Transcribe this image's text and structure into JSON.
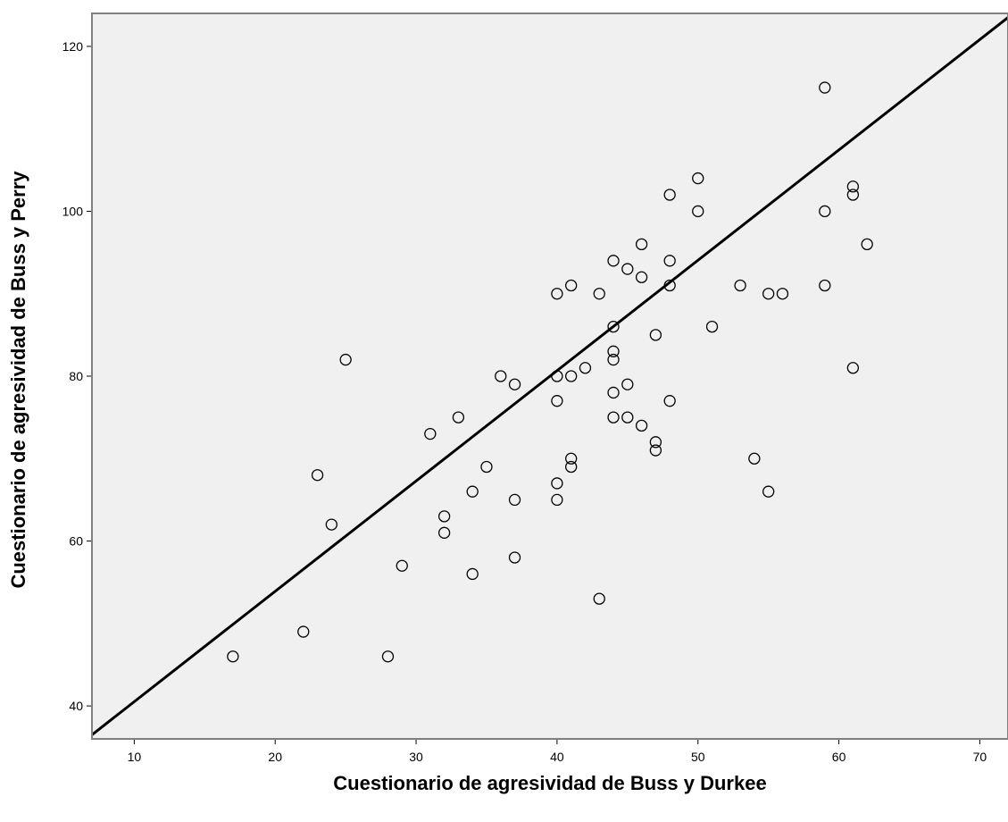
{
  "chart_data": {
    "type": "scatter",
    "title": "",
    "xlabel": "Cuestionario de agresividad de Buss y Durkee",
    "ylabel": "Cuestionario de agresividad de Buss y Perry",
    "xlim": [
      7,
      72
    ],
    "ylim": [
      36,
      124
    ],
    "xticks": [
      10,
      20,
      30,
      40,
      50,
      60,
      70
    ],
    "yticks": [
      40,
      60,
      80,
      100,
      120
    ],
    "grid": false,
    "legend": "none",
    "colors": {
      "plot_background": "#f0f0f0",
      "marker_stroke": "#000000",
      "fit_line": "#000000",
      "frame": "#808080"
    },
    "fit_line": {
      "type": "linear",
      "points": [
        [
          7,
          36.5
        ],
        [
          72,
          123.5
        ]
      ]
    },
    "points": [
      {
        "x": 17,
        "y": 46
      },
      {
        "x": 22,
        "y": 49
      },
      {
        "x": 23,
        "y": 68
      },
      {
        "x": 24,
        "y": 62
      },
      {
        "x": 25,
        "y": 82
      },
      {
        "x": 28,
        "y": 46
      },
      {
        "x": 29,
        "y": 57
      },
      {
        "x": 31,
        "y": 73
      },
      {
        "x": 32,
        "y": 63
      },
      {
        "x": 32,
        "y": 61
      },
      {
        "x": 33,
        "y": 75
      },
      {
        "x": 34,
        "y": 66
      },
      {
        "x": 34,
        "y": 56
      },
      {
        "x": 35,
        "y": 69
      },
      {
        "x": 36,
        "y": 80
      },
      {
        "x": 37,
        "y": 79
      },
      {
        "x": 37,
        "y": 65
      },
      {
        "x": 37,
        "y": 58
      },
      {
        "x": 40,
        "y": 90
      },
      {
        "x": 40,
        "y": 80
      },
      {
        "x": 40,
        "y": 77
      },
      {
        "x": 40,
        "y": 67
      },
      {
        "x": 40,
        "y": 65
      },
      {
        "x": 41,
        "y": 91
      },
      {
        "x": 41,
        "y": 80
      },
      {
        "x": 41,
        "y": 70
      },
      {
        "x": 41,
        "y": 69
      },
      {
        "x": 42,
        "y": 81
      },
      {
        "x": 43,
        "y": 90
      },
      {
        "x": 43,
        "y": 53
      },
      {
        "x": 44,
        "y": 94
      },
      {
        "x": 44,
        "y": 86
      },
      {
        "x": 44,
        "y": 83
      },
      {
        "x": 44,
        "y": 82
      },
      {
        "x": 44,
        "y": 78
      },
      {
        "x": 44,
        "y": 75
      },
      {
        "x": 45,
        "y": 93
      },
      {
        "x": 45,
        "y": 79
      },
      {
        "x": 45,
        "y": 75
      },
      {
        "x": 46,
        "y": 96
      },
      {
        "x": 46,
        "y": 92
      },
      {
        "x": 46,
        "y": 74
      },
      {
        "x": 47,
        "y": 85
      },
      {
        "x": 47,
        "y": 72
      },
      {
        "x": 47,
        "y": 71
      },
      {
        "x": 48,
        "y": 102
      },
      {
        "x": 48,
        "y": 94
      },
      {
        "x": 48,
        "y": 91
      },
      {
        "x": 48,
        "y": 77
      },
      {
        "x": 50,
        "y": 104
      },
      {
        "x": 50,
        "y": 100
      },
      {
        "x": 51,
        "y": 86
      },
      {
        "x": 53,
        "y": 91
      },
      {
        "x": 54,
        "y": 70
      },
      {
        "x": 55,
        "y": 90
      },
      {
        "x": 55,
        "y": 66
      },
      {
        "x": 56,
        "y": 90
      },
      {
        "x": 59,
        "y": 115
      },
      {
        "x": 59,
        "y": 100
      },
      {
        "x": 59,
        "y": 91
      },
      {
        "x": 61,
        "y": 103
      },
      {
        "x": 61,
        "y": 102
      },
      {
        "x": 61,
        "y": 81
      },
      {
        "x": 62,
        "y": 96
      }
    ]
  }
}
